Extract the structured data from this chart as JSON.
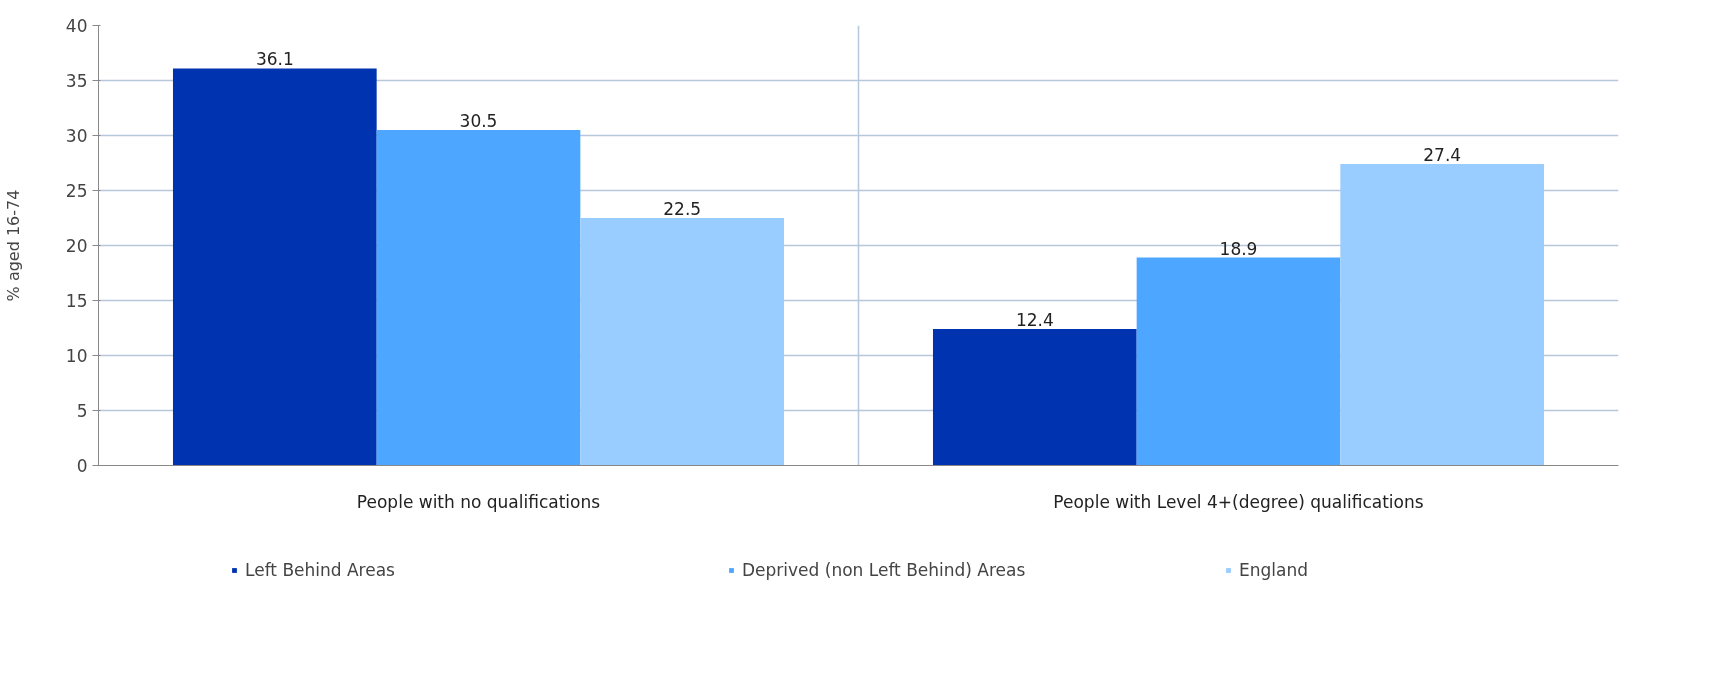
{
  "chart_data": {
    "type": "bar",
    "ylabel": "% aged 16-74",
    "categories": [
      "People with no qualifications",
      "People with Level 4+(degree) qualifications"
    ],
    "series": [
      {
        "name": "Left Behind Areas",
        "color": "#0033b0",
        "values": [
          36.1,
          12.4
        ]
      },
      {
        "name": "Deprived (non Left Behind) Areas",
        "color": "#4da6ff",
        "values": [
          30.5,
          18.9
        ]
      },
      {
        "name": "England",
        "color": "#99ccff",
        "values": [
          22.5,
          27.4
        ]
      }
    ],
    "ylim": [
      0,
      40
    ],
    "yticks": [
      0,
      5,
      10,
      15,
      20,
      25,
      30,
      35,
      40
    ],
    "grid": true,
    "legend": "bottom",
    "data_labels": true
  }
}
